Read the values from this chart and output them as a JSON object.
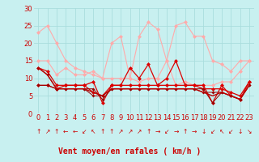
{
  "bg_color": "#c8f0f0",
  "grid_color": "#aadddd",
  "xlabel": "Vent moyen/en rafales ( km/h )",
  "xlim": [
    -0.5,
    23.5
  ],
  "ylim": [
    0,
    30
  ],
  "yticks": [
    0,
    5,
    10,
    15,
    20,
    25,
    30
  ],
  "xticks": [
    0,
    1,
    2,
    3,
    4,
    5,
    6,
    7,
    8,
    9,
    10,
    11,
    12,
    13,
    14,
    15,
    16,
    17,
    18,
    19,
    20,
    21,
    22,
    23
  ],
  "series": [
    {
      "color": "#ffaaaa",
      "linewidth": 0.8,
      "markersize": 2.5,
      "y": [
        23,
        25,
        20,
        15,
        13,
        12,
        11,
        10,
        20,
        22,
        10,
        22,
        26,
        24,
        15,
        25,
        26,
        22,
        22,
        15,
        14,
        12,
        15,
        15
      ]
    },
    {
      "color": "#ffaaaa",
      "linewidth": 0.8,
      "markersize": 2.5,
      "y": [
        15,
        15,
        11,
        13,
        11,
        11,
        12,
        10,
        10,
        10,
        10,
        9,
        10,
        10,
        15,
        8,
        9,
        8,
        8,
        8,
        9,
        9,
        12,
        15
      ]
    },
    {
      "color": "#dd0000",
      "linewidth": 0.9,
      "markersize": 2.5,
      "y": [
        13,
        12,
        8,
        8,
        8,
        8,
        9,
        3,
        8,
        8,
        13,
        10,
        14,
        8,
        10,
        15,
        8,
        8,
        8,
        3,
        8,
        5,
        4,
        9
      ]
    },
    {
      "color": "#dd0000",
      "linewidth": 0.9,
      "markersize": 2.5,
      "y": [
        8,
        8,
        7,
        8,
        8,
        8,
        6,
        5,
        8,
        8,
        8,
        8,
        8,
        8,
        8,
        8,
        8,
        8,
        7,
        7,
        7,
        6,
        5,
        9
      ]
    },
    {
      "color": "#990000",
      "linewidth": 0.7,
      "markersize": 2.0,
      "y": [
        13,
        11,
        7,
        7,
        7,
        7,
        7,
        4,
        7,
        7,
        7,
        7,
        7,
        7,
        7,
        7,
        7,
        7,
        7,
        3,
        6,
        5,
        4,
        8
      ]
    },
    {
      "color": "#990000",
      "linewidth": 0.7,
      "markersize": 2.0,
      "y": [
        8,
        8,
        7,
        7,
        7,
        7,
        5,
        5,
        7,
        7,
        7,
        7,
        7,
        7,
        7,
        7,
        7,
        7,
        6,
        6,
        6,
        5,
        4,
        8
      ]
    },
    {
      "color": "#bb0000",
      "linewidth": 1.0,
      "markersize": 0,
      "y": [
        13,
        11,
        7,
        7,
        7,
        7,
        6,
        5,
        7,
        7,
        7,
        7,
        7,
        7,
        7,
        7,
        7,
        7,
        6,
        5,
        6,
        5,
        4,
        8
      ]
    }
  ],
  "arrow_symbols": [
    "↑",
    "↗",
    "↑",
    "←",
    "←",
    "↙",
    "↖",
    "↑",
    "↑",
    "↗",
    "↗",
    "↗",
    "↑",
    "→",
    "↙",
    "→",
    "↑",
    "→",
    "↓",
    "↙",
    "↖",
    "↙",
    "↓",
    "↘"
  ],
  "xlabel_color": "#cc0000",
  "xlabel_fontsize": 7,
  "tick_color": "#cc0000",
  "tick_fontsize": 6,
  "arrow_color": "#cc0000",
  "arrow_fontsize": 5.5
}
